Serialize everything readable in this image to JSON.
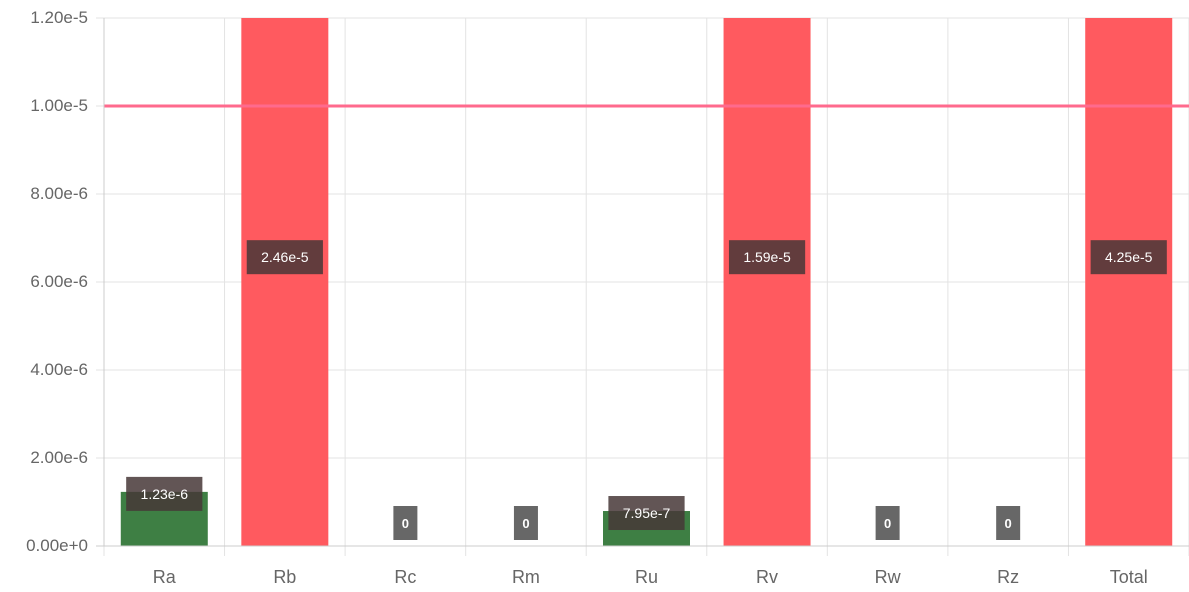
{
  "chart_data": {
    "type": "bar",
    "categories": [
      "Ra",
      "Rb",
      "Rc",
      "Rm",
      "Ru",
      "Rv",
      "Rw",
      "Rz",
      "Total"
    ],
    "values": [
      1.23e-06,
      2.46e-05,
      0,
      0,
      7.95e-07,
      1.59e-05,
      0,
      0,
      4.25e-05
    ],
    "data_labels": [
      "1.23e-6",
      "2.46e-5",
      "0",
      "0",
      "7.95e-7",
      "1.59e-5",
      "0",
      "0",
      "4.25e-5"
    ],
    "bar_colors": [
      "#3e7f44",
      "#ff5a5f",
      "#3e7f44",
      "#3e7f44",
      "#3e7f44",
      "#ff5a5f",
      "#3e7f44",
      "#3e7f44",
      "#ff5a5f"
    ],
    "threshold": {
      "value": 1e-05,
      "color": "#ff6a8d"
    },
    "ylim": [
      0,
      1.2e-05
    ],
    "y_ticks": [
      0,
      2e-06,
      4e-06,
      6e-06,
      8e-06,
      1e-05,
      1.2e-05
    ],
    "y_tick_labels": [
      "0.00e+0",
      "2.00e-6",
      "4.00e-6",
      "6.00e-6",
      "8.00e-6",
      "1.00e-5",
      "1.20e-5"
    ],
    "grid": true,
    "title": "",
    "xlabel": "",
    "ylabel": ""
  }
}
